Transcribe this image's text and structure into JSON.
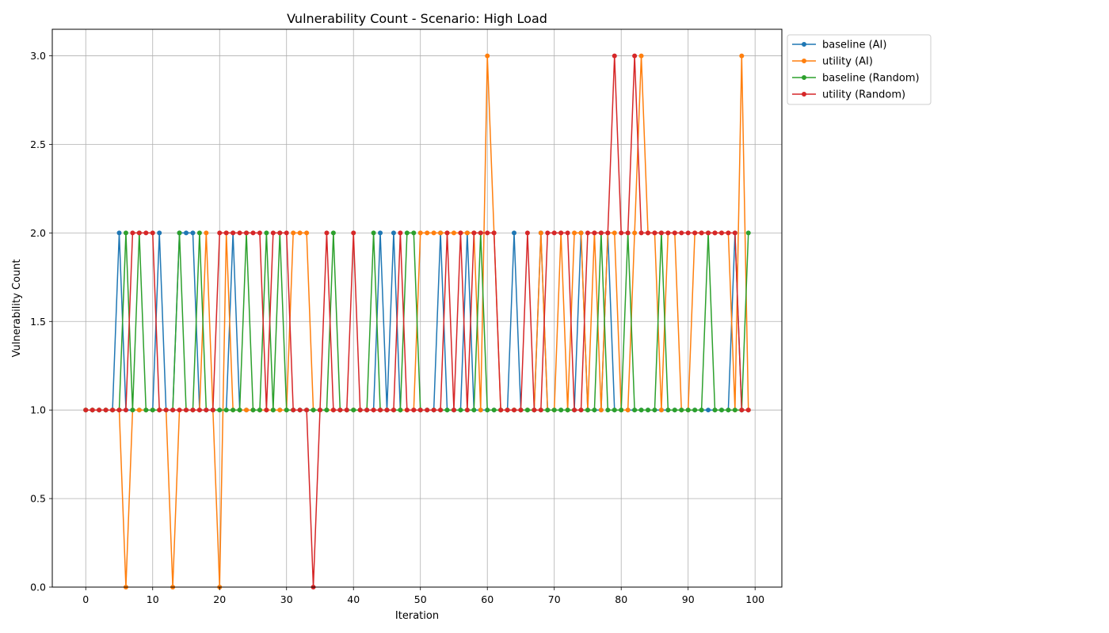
{
  "chart_data": {
    "type": "line",
    "title": "Vulnerability Count - Scenario: High Load",
    "xlabel": "Iteration",
    "ylabel": "Vulnerability Count",
    "xlim": [
      -5,
      104
    ],
    "ylim": [
      0,
      3.15
    ],
    "xticks": [
      "0",
      "10",
      "20",
      "30",
      "40",
      "50",
      "60",
      "70",
      "80",
      "90",
      "100"
    ],
    "yticks": [
      "0.0",
      "0.5",
      "1.0",
      "1.5",
      "2.0",
      "2.5",
      "3.0"
    ],
    "grid": true,
    "legend_position": "outside-top-right",
    "x": [
      0,
      1,
      2,
      3,
      4,
      5,
      6,
      7,
      8,
      9,
      10,
      11,
      12,
      13,
      14,
      15,
      16,
      17,
      18,
      19,
      20,
      21,
      22,
      23,
      24,
      25,
      26,
      27,
      28,
      29,
      30,
      31,
      32,
      33,
      34,
      35,
      36,
      37,
      38,
      39,
      40,
      41,
      42,
      43,
      44,
      45,
      46,
      47,
      48,
      49,
      50,
      51,
      52,
      53,
      54,
      55,
      56,
      57,
      58,
      59,
      60,
      61,
      62,
      63,
      64,
      65,
      66,
      67,
      68,
      69,
      70,
      71,
      72,
      73,
      74,
      75,
      76,
      77,
      78,
      79,
      80,
      81,
      82,
      83,
      84,
      85,
      86,
      87,
      88,
      89,
      90,
      91,
      92,
      93,
      94,
      95,
      96,
      97,
      98,
      99
    ],
    "series": [
      {
        "name": "baseline (AI)",
        "color": "#1f77b4",
        "values": [
          1,
          1,
          1,
          1,
          1,
          2,
          1,
          1,
          1,
          1,
          1,
          2,
          1,
          1,
          2,
          2,
          2,
          1,
          1,
          1,
          1,
          1,
          2,
          1,
          1,
          1,
          1,
          1,
          1,
          1,
          1,
          1,
          1,
          1,
          1,
          1,
          1,
          1,
          1,
          1,
          1,
          1,
          1,
          1,
          2,
          1,
          2,
          1,
          1,
          1,
          1,
          1,
          1,
          2,
          1,
          1,
          1,
          2,
          1,
          1,
          1,
          1,
          1,
          1,
          2,
          1,
          1,
          1,
          2,
          1,
          1,
          1,
          1,
          1,
          2,
          1,
          1,
          1,
          2,
          1,
          1,
          1,
          1,
          1,
          1,
          1,
          1,
          1,
          1,
          1,
          1,
          1,
          1,
          1,
          1,
          1,
          1,
          2,
          1,
          1
        ]
      },
      {
        "name": "utility (AI)",
        "color": "#ff7f0e",
        "values": [
          1,
          1,
          1,
          1,
          1,
          1,
          0,
          1,
          1,
          1,
          1,
          1,
          1,
          0,
          1,
          1,
          1,
          1,
          2,
          1,
          0,
          2,
          1,
          1,
          1,
          1,
          1,
          1,
          1,
          1,
          1,
          2,
          2,
          2,
          1,
          1,
          1,
          1,
          1,
          1,
          1,
          1,
          1,
          1,
          1,
          1,
          1,
          1,
          1,
          1,
          2,
          2,
          2,
          2,
          2,
          2,
          2,
          2,
          2,
          1,
          3,
          2,
          1,
          1,
          1,
          1,
          1,
          1,
          2,
          1,
          1,
          2,
          1,
          2,
          2,
          1,
          2,
          1,
          2,
          2,
          1,
          1,
          2,
          3,
          2,
          2,
          1,
          2,
          2,
          1,
          1,
          2,
          2,
          2,
          2,
          2,
          2,
          1,
          3,
          1
        ]
      },
      {
        "name": "baseline (Random)",
        "color": "#2ca02c",
        "values": [
          1,
          1,
          1,
          1,
          1,
          1,
          2,
          1,
          2,
          1,
          1,
          1,
          1,
          1,
          2,
          1,
          1,
          2,
          1,
          1,
          1,
          1,
          1,
          1,
          2,
          1,
          1,
          2,
          1,
          2,
          1,
          1,
          1,
          1,
          1,
          1,
          1,
          2,
          1,
          1,
          1,
          1,
          1,
          2,
          1,
          1,
          1,
          1,
          2,
          2,
          1,
          1,
          1,
          1,
          1,
          1,
          1,
          1,
          1,
          2,
          1,
          1,
          1,
          1,
          1,
          1,
          1,
          1,
          1,
          1,
          1,
          1,
          1,
          1,
          1,
          1,
          1,
          2,
          1,
          1,
          1,
          2,
          1,
          1,
          1,
          1,
          2,
          1,
          1,
          1,
          1,
          1,
          1,
          2,
          1,
          1,
          1,
          1,
          1,
          2
        ]
      },
      {
        "name": "utility (Random)",
        "color": "#d62728",
        "values": [
          1,
          1,
          1,
          1,
          1,
          1,
          1,
          2,
          2,
          2,
          2,
          1,
          1,
          1,
          1,
          1,
          1,
          1,
          1,
          1,
          2,
          2,
          2,
          2,
          2,
          2,
          2,
          1,
          2,
          2,
          2,
          1,
          1,
          1,
          0,
          1,
          2,
          1,
          1,
          1,
          2,
          1,
          1,
          1,
          1,
          1,
          1,
          2,
          1,
          1,
          1,
          1,
          1,
          1,
          2,
          1,
          2,
          1,
          2,
          2,
          2,
          2,
          1,
          1,
          1,
          1,
          2,
          1,
          1,
          2,
          2,
          2,
          2,
          1,
          1,
          2,
          2,
          2,
          2,
          3,
          2,
          2,
          3,
          2,
          2,
          2,
          2,
          2,
          2,
          2,
          2,
          2,
          2,
          2,
          2,
          2,
          2,
          2,
          1,
          1
        ]
      }
    ]
  }
}
